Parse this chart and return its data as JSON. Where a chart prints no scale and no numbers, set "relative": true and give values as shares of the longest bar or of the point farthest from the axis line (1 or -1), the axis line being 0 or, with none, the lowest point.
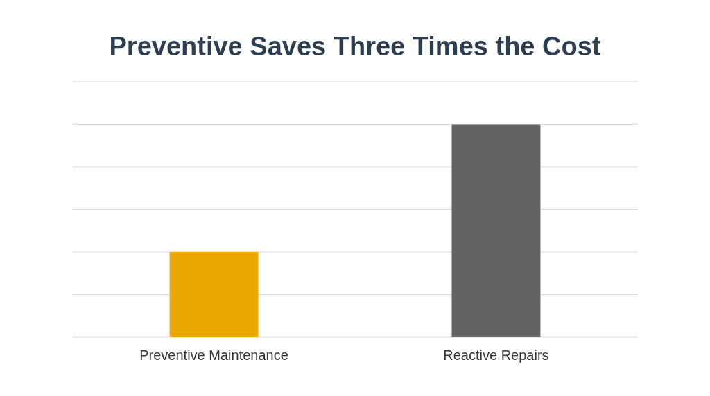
{
  "chart_data": {
    "type": "bar",
    "title": "Preventive Saves Three Times the Cost",
    "categories": [
      "Preventive Maintenance",
      "Reactive Repairs"
    ],
    "values": [
      0.4,
      1
    ],
    "colors": [
      "#eba700",
      "#636363"
    ],
    "relative": true,
    "grid": "y"
  }
}
